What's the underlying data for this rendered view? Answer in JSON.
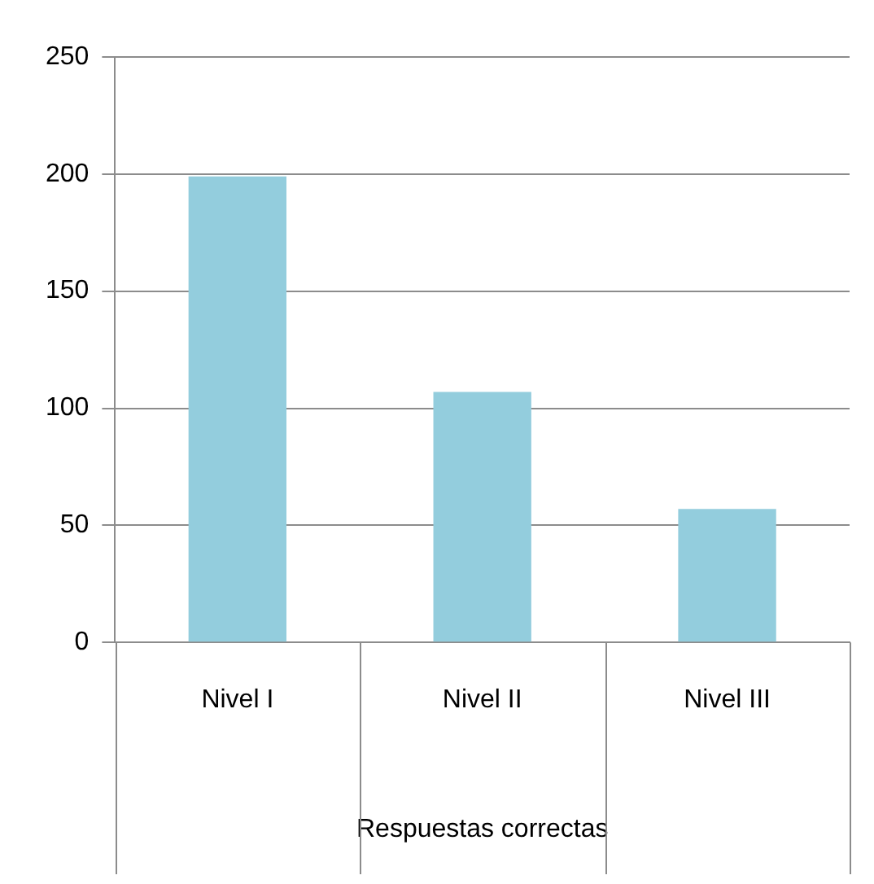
{
  "chart_data": {
    "type": "bar",
    "xlabel": "Respuestas correctas",
    "categories": [
      "Nivel I",
      "Nivel II",
      "Nivel III"
    ],
    "values": [
      199,
      107,
      57
    ],
    "color": "#93cddd",
    "ylim": [
      0,
      250
    ],
    "yticks": [
      0,
      50,
      100,
      150,
      200,
      250
    ],
    "grid": "y"
  }
}
